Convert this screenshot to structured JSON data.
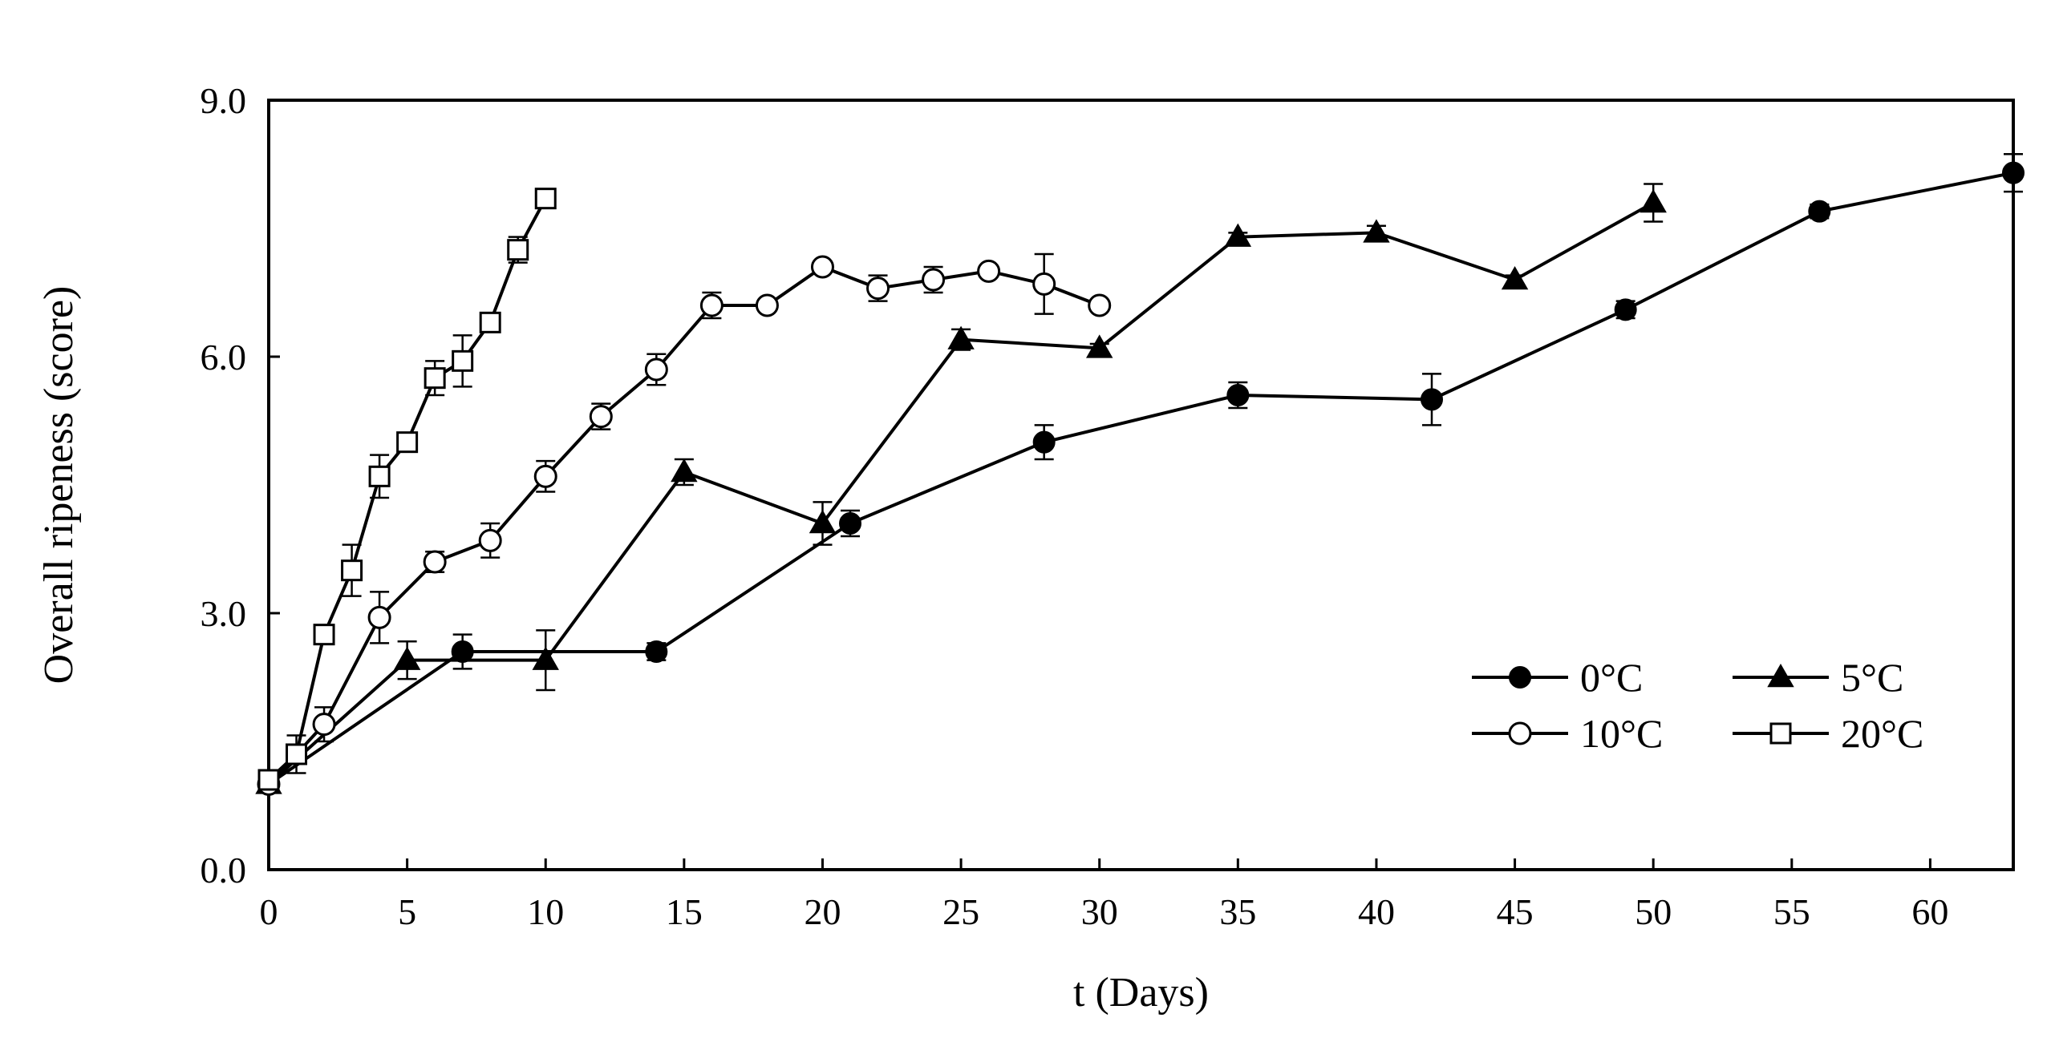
{
  "chart_data": {
    "type": "line",
    "title": "",
    "xlabel": "t (Days)",
    "ylabel": "Overall ripeness (score)",
    "xlim": [
      0,
      63
    ],
    "ylim": [
      0,
      9
    ],
    "xticks": [
      "0",
      "5",
      "10",
      "15",
      "20",
      "25",
      "30",
      "35",
      "40",
      "45",
      "50",
      "55",
      "60"
    ],
    "yticks": [
      "0.0",
      "3.0",
      "6.0",
      "9.0"
    ],
    "grid": false,
    "legend_position": "bottom-right",
    "series": [
      {
        "name": "0°C",
        "marker": "filled-circle",
        "x": [
          0,
          7,
          14,
          21,
          28,
          35,
          42,
          49,
          56,
          63
        ],
        "y": [
          1.0,
          2.55,
          2.55,
          4.05,
          5.0,
          5.55,
          5.5,
          6.55,
          7.7,
          8.15
        ],
        "err": [
          0.0,
          0.2,
          0.1,
          0.15,
          0.2,
          0.15,
          0.3,
          0.1,
          0.08,
          0.22
        ]
      },
      {
        "name": "5°C",
        "marker": "filled-triangle",
        "x": [
          0,
          5,
          10,
          15,
          20,
          25,
          30,
          35,
          40,
          45,
          50
        ],
        "y": [
          1.0,
          2.45,
          2.45,
          4.65,
          4.05,
          6.2,
          6.1,
          7.4,
          7.45,
          6.9,
          7.8
        ],
        "err": [
          0.0,
          0.22,
          0.35,
          0.15,
          0.25,
          0.12,
          0.05,
          0.05,
          0.08,
          0.05,
          0.22
        ]
      },
      {
        "name": "10°C",
        "marker": "open-circle",
        "x": [
          0,
          2,
          4,
          6,
          8,
          10,
          12,
          14,
          16,
          18,
          20,
          22,
          24,
          26,
          28,
          30
        ],
        "y": [
          1.0,
          1.7,
          2.95,
          3.6,
          3.85,
          4.6,
          5.3,
          5.85,
          6.6,
          6.6,
          7.05,
          6.8,
          6.9,
          7.0,
          6.85,
          6.6
        ],
        "err": [
          0.0,
          0.2,
          0.3,
          0.12,
          0.2,
          0.18,
          0.15,
          0.18,
          0.15,
          0.05,
          0.05,
          0.15,
          0.15,
          0.05,
          0.35,
          0.05
        ]
      },
      {
        "name": "20°C",
        "marker": "open-square",
        "x": [
          0,
          1,
          2,
          3,
          4,
          5,
          6,
          7,
          8,
          9,
          10
        ],
        "y": [
          1.05,
          1.35,
          2.75,
          3.5,
          4.6,
          5.0,
          5.75,
          5.95,
          6.4,
          7.25,
          7.85
        ],
        "err": [
          0.0,
          0.22,
          0.1,
          0.3,
          0.25,
          0.05,
          0.2,
          0.3,
          0.1,
          0.15,
          0.05
        ]
      }
    ]
  }
}
